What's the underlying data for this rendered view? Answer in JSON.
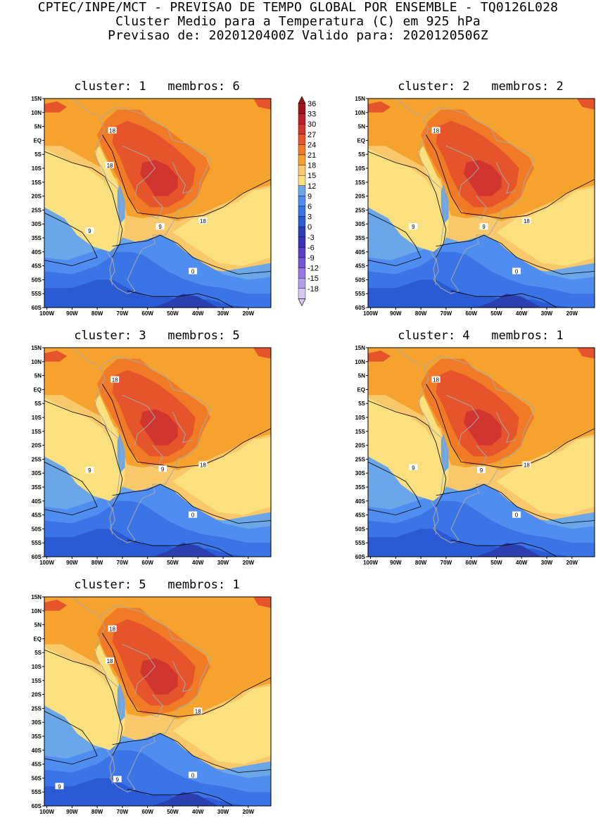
{
  "header": {
    "line1": "CPTEC/INPE/MCT - PREVISAO DE TEMPO GLOBAL POR ENSEMBLE - TQ0126L028",
    "line2": "Cluster Medio para a Temperatura (C) em 925 hPa",
    "line3": "Previsao de: 2020120400Z   Valido para: 2020120506Z"
  },
  "colors": {
    "background": "#ffffff",
    "coast": "#a8a8a8",
    "contour": "#000000"
  },
  "axes": {
    "lat_labels": [
      "15N",
      "10N",
      "5N",
      "EQ",
      "5S",
      "10S",
      "15S",
      "20S",
      "25S",
      "30S",
      "35S",
      "40S",
      "45S",
      "50S",
      "55S",
      "60S"
    ],
    "lon_labels": [
      "100W",
      "90W",
      "80W",
      "70W",
      "60W",
      "50W",
      "40W",
      "30W",
      "20W"
    ]
  },
  "colorbar": {
    "levels": [
      "36",
      "33",
      "30",
      "27",
      "24",
      "21",
      "18",
      "15",
      "12",
      "9",
      "6",
      "3",
      "0",
      "-3",
      "-6",
      "-9",
      "-12",
      "-15",
      "-18"
    ],
    "colors": [
      "#a0141b",
      "#b8232a",
      "#d03530",
      "#e5542a",
      "#f07a26",
      "#f5a32e",
      "#f9c86a",
      "#fbe07f",
      "#6aa6e8",
      "#4f8ef0",
      "#3a74e6",
      "#2a5ad4",
      "#2b3fb0",
      "#3b33b8",
      "#5a3fc8",
      "#7656d6",
      "#9878e0",
      "#b59fea",
      "#d6c8f2"
    ]
  },
  "panels": [
    {
      "title": "cluster: 1   membros: 6",
      "labels": [
        "18",
        "18",
        "18",
        "9",
        "9",
        "0"
      ]
    },
    {
      "title": "cluster: 2   membros: 2",
      "labels": [
        "18",
        "18",
        "9",
        "9",
        "0"
      ]
    },
    {
      "title": "cluster: 3   membros: 5",
      "labels": [
        "18",
        "18",
        "9",
        "9",
        "0"
      ]
    },
    {
      "title": "cluster: 4   membros: 1",
      "labels": [
        "18",
        "18",
        "9",
        "9",
        "0"
      ]
    },
    {
      "title": "cluster: 5   membros: 1",
      "labels": [
        "18",
        "18",
        "18",
        "9",
        "9",
        "0"
      ]
    }
  ]
}
